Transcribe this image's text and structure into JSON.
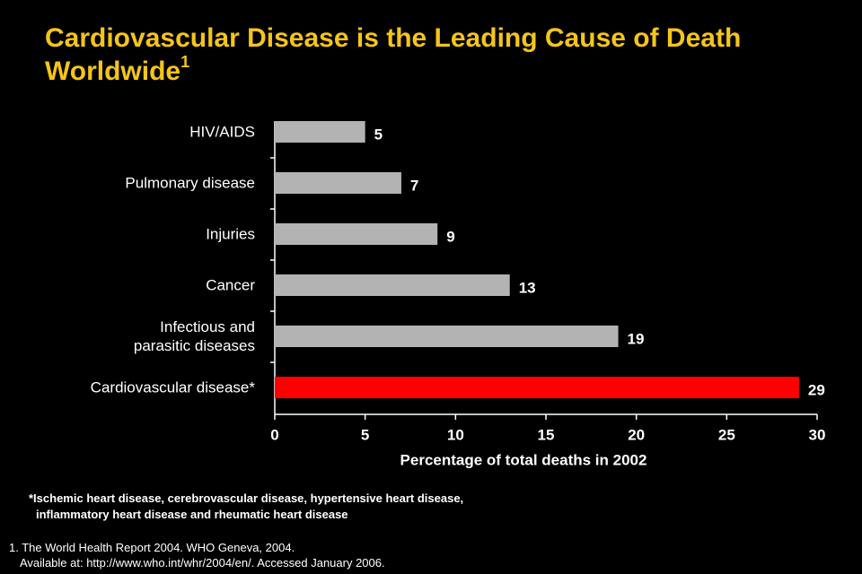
{
  "chart_data": {
    "type": "bar",
    "orientation": "horizontal",
    "title": "Cardiovascular Disease is the Leading Cause of Death\nWorldwide",
    "title_superscript": "1",
    "categories": [
      "HIV/AIDS",
      "Pulmonary disease",
      "Injuries",
      "Cancer",
      "Infectious and\nparasitic diseases",
      "Cardiovascular disease*"
    ],
    "values": [
      5,
      7,
      9,
      13,
      19,
      29
    ],
    "colors": [
      "#b3b3b3",
      "#b3b3b3",
      "#b3b3b3",
      "#b3b3b3",
      "#b3b3b3",
      "#ff0000"
    ],
    "xlim": [
      0,
      30
    ],
    "xticks": [
      0,
      5,
      10,
      15,
      20,
      25,
      30
    ],
    "xlabel": "Percentage of total deaths in 2002",
    "footnotes": [
      "*Ischemic heart disease, cerebrovascular disease, hypertensive heart disease,",
      "inflammatory heart disease and rheumatic heart disease"
    ],
    "references": [
      "1. The World Health Report 2004. WHO Geneva, 2004.",
      "Available at: http://www.who.int/whr/2004/en/. Accessed January 2006."
    ]
  }
}
